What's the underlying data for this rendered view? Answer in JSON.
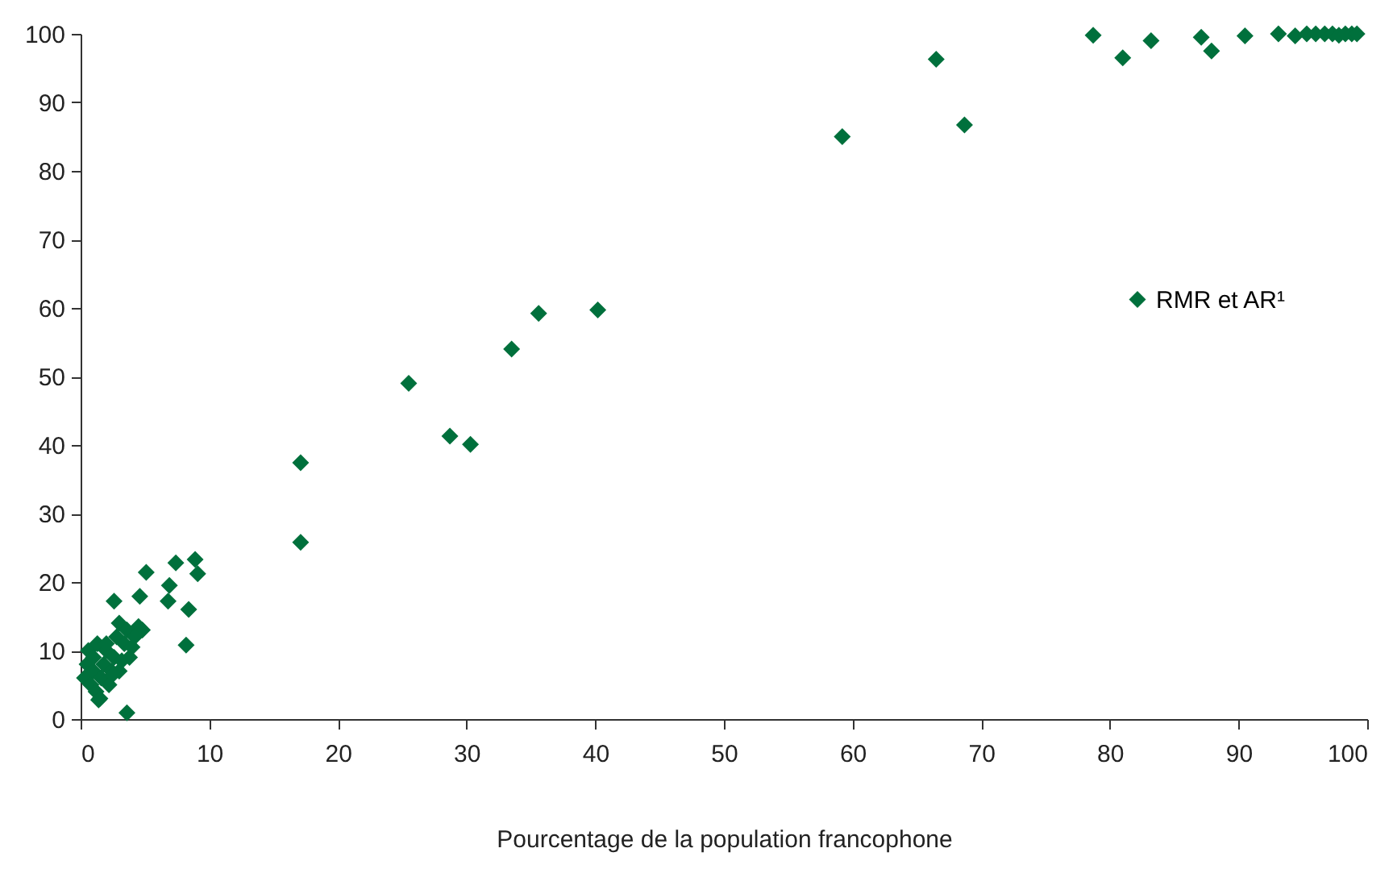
{
  "chart_data": {
    "type": "scatter",
    "xlabel": "Pourcentage de la population francophone",
    "xlim": [
      0,
      100
    ],
    "ylim": [
      0,
      100
    ],
    "xticks": [
      0,
      10,
      20,
      30,
      40,
      50,
      60,
      70,
      80,
      90,
      100
    ],
    "yticks": [
      0,
      10,
      20,
      30,
      40,
      50,
      60,
      70,
      80,
      90,
      100
    ],
    "grid": false,
    "legend": "right",
    "marker": "diamond",
    "series": [
      {
        "name": "RMR et AR¹",
        "color": "#00703c",
        "x": [
          78.7,
          81,
          83.2,
          87.1,
          87.9,
          90.5,
          93.1,
          94.4,
          95.3,
          96,
          96.7,
          97.3,
          97.8,
          98.3,
          98.8,
          99.2,
          66.5,
          59.2,
          68.7,
          40.2,
          35.6,
          33.5,
          25.5,
          28.7,
          30.3,
          17.1,
          17.1,
          5.1,
          7.4,
          8.9,
          9.1,
          6.9,
          4.6,
          2.6,
          6.8,
          8.4,
          8.2,
          3.6,
          0.3,
          0.5,
          0.6,
          0.8,
          1,
          1,
          1.2,
          1.3,
          1.5,
          1.6,
          1.8,
          2,
          2.2,
          2.4,
          2.6,
          2.8,
          3,
          3,
          3.4,
          3.6,
          3.8,
          4,
          4.5,
          4.8,
          2,
          1.4,
          2.5,
          3.2,
          4.2
        ],
        "values": [
          99.8,
          96.5,
          99,
          99.5,
          97.5,
          99.7,
          100,
          99.7,
          100,
          100,
          100,
          100,
          99.8,
          100,
          100,
          100,
          96.3,
          85,
          86.7,
          59.7,
          59.2,
          54,
          49,
          41.3,
          40.1,
          37.4,
          25.8,
          21.4,
          22.8,
          23.3,
          21.2,
          19.5,
          17.9,
          17.2,
          17.2,
          16,
          10.8,
          0.9,
          6,
          8,
          10,
          5,
          7,
          9,
          4,
          11,
          3,
          6,
          8,
          10,
          5,
          7,
          9,
          12,
          14,
          7,
          11,
          13,
          9,
          10.5,
          13.5,
          13,
          11,
          2.8,
          6.5,
          8.5,
          12
        ]
      }
    ]
  }
}
